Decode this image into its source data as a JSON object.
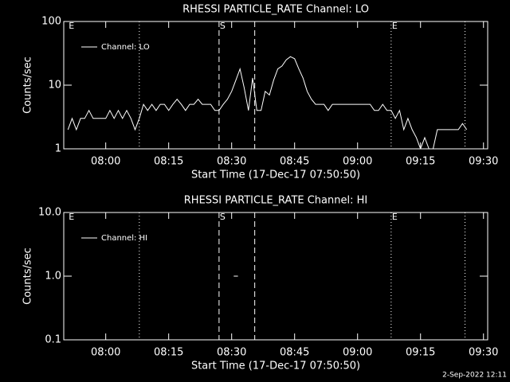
{
  "footer": "2-Sep-2022 12:11",
  "chart_data": [
    {
      "type": "line",
      "title": "RHESSI PARTICLE_RATE Channel: LO",
      "xlabel": "Start Time (17-Dec-17 07:50:50)",
      "ylabel": "Counts/sec",
      "log_y": true,
      "ylim": [
        1,
        100
      ],
      "yticks": [
        1,
        10,
        100
      ],
      "xlim": [
        470,
        571
      ],
      "xticks": [
        {
          "value": 480,
          "label": "08:00"
        },
        {
          "value": 495,
          "label": "08:15"
        },
        {
          "value": 510,
          "label": "08:30"
        },
        {
          "value": 525,
          "label": "08:45"
        },
        {
          "value": 540,
          "label": "09:00"
        },
        {
          "value": 555,
          "label": "09:15"
        },
        {
          "value": 570,
          "label": "09:30"
        }
      ],
      "legend": "upper left",
      "markers": [
        {
          "x": 471,
          "style": "none",
          "label": "E"
        },
        {
          "x": 488,
          "style": "dotted"
        },
        {
          "x": 507,
          "style": "dashed",
          "label": "S"
        },
        {
          "x": 515.5,
          "style": "dashed"
        },
        {
          "x": 548,
          "style": "dotted",
          "label": "E"
        },
        {
          "x": 565.6,
          "style": "dotted"
        }
      ],
      "series": [
        {
          "name": "Channel: LO",
          "color": "#ffffff",
          "x": [
            471,
            472,
            473,
            474,
            475,
            476,
            477,
            478,
            479,
            480,
            481,
            482,
            483,
            484,
            485,
            486,
            487,
            488,
            489,
            490,
            491,
            492,
            493,
            494,
            495,
            496,
            497,
            498,
            499,
            500,
            501,
            502,
            503,
            504,
            505,
            506,
            507,
            508,
            509,
            510,
            511,
            512,
            513,
            514,
            515,
            516,
            517,
            518,
            519,
            520,
            521,
            522,
            523,
            524,
            525,
            526,
            527,
            528,
            529,
            530,
            531,
            532,
            533,
            534,
            535,
            536,
            537,
            538,
            539,
            540,
            541,
            542,
            543,
            544,
            545,
            546,
            547,
            548,
            549,
            550,
            551,
            552,
            553,
            554,
            555,
            556,
            557,
            558,
            559,
            560,
            561,
            562,
            563,
            564,
            565,
            566
          ],
          "values": [
            2,
            3,
            2,
            3,
            3,
            4,
            3,
            3,
            3,
            3,
            4,
            3,
            4,
            3,
            4,
            3,
            2,
            3,
            5,
            4,
            5,
            4,
            5,
            5,
            4,
            5,
            6,
            5,
            4,
            5,
            5,
            6,
            5,
            5,
            5,
            4,
            4,
            5,
            6,
            8,
            12,
            18,
            9,
            4,
            13,
            4,
            4,
            8,
            7,
            12,
            18,
            20,
            25,
            28,
            26,
            18,
            13,
            8,
            6,
            5,
            5,
            5,
            4,
            5,
            5,
            5,
            5,
            5,
            5,
            5,
            5,
            5,
            5,
            4,
            4,
            5,
            4,
            4,
            3,
            4,
            2,
            3,
            2,
            1.5,
            1,
            1.5,
            1,
            1,
            2,
            2,
            2,
            2,
            2,
            2,
            2.5,
            2
          ]
        }
      ]
    },
    {
      "type": "line",
      "title": "RHESSI PARTICLE_RATE Channel: HI",
      "xlabel": "Start Time (17-Dec-17 07:50:50)",
      "ylabel": "Counts/sec",
      "log_y": true,
      "ylim": [
        0.1,
        10
      ],
      "yticks": [
        0.1,
        {
          "value": 1,
          "label": "1.0"
        },
        {
          "value": 10,
          "label": "10.0"
        }
      ],
      "xlim": [
        470,
        571
      ],
      "xticks": [
        {
          "value": 480,
          "label": "08:00"
        },
        {
          "value": 495,
          "label": "08:15"
        },
        {
          "value": 510,
          "label": "08:30"
        },
        {
          "value": 525,
          "label": "08:45"
        },
        {
          "value": 540,
          "label": "09:00"
        },
        {
          "value": 555,
          "label": "09:15"
        },
        {
          "value": 570,
          "label": "09:30"
        }
      ],
      "legend": "upper left",
      "markers": [
        {
          "x": 471,
          "style": "none",
          "label": "E"
        },
        {
          "x": 488,
          "style": "dotted"
        },
        {
          "x": 507,
          "style": "dashed",
          "label": "S"
        },
        {
          "x": 515.5,
          "style": "dashed"
        },
        {
          "x": 548,
          "style": "dotted",
          "label": "E"
        },
        {
          "x": 565.6,
          "style": "dotted"
        }
      ],
      "series": [
        {
          "name": "Channel: HI",
          "color": "#ffffff",
          "x": [
            510.5,
            511.5
          ],
          "values": [
            1,
            1
          ]
        }
      ]
    }
  ]
}
